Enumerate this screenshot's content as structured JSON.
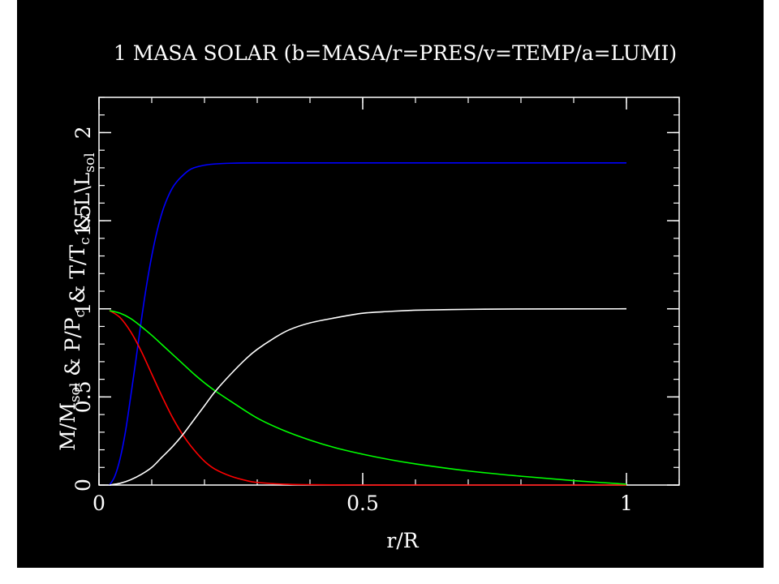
{
  "chart_data": {
    "type": "line",
    "title": "1 MASA SOLAR (b=MASA/r=PRES/v=TEMP/a=LUMI)",
    "xlabel": "r/R",
    "ylabel": {
      "parts": [
        {
          "text": "M/M",
          "sub": false
        },
        {
          "text": "sol",
          "sub": true
        },
        {
          "text": " & P/P",
          "sub": false
        },
        {
          "text": "c",
          "sub": true
        },
        {
          "text": " & T/T",
          "sub": false
        },
        {
          "text": "c",
          "sub": true
        },
        {
          "text": " & L\\L",
          "sub": false
        },
        {
          "text": "sol",
          "sub": true
        }
      ]
    },
    "xlim": [
      0,
      1.1
    ],
    "ylim": [
      0,
      2.2
    ],
    "x_ticks": [
      {
        "value": 0,
        "label": "0"
      },
      {
        "value": 0.5,
        "label": "0.5"
      },
      {
        "value": 1,
        "label": "1"
      }
    ],
    "y_ticks": [
      {
        "value": 0,
        "label": "0"
      },
      {
        "value": 0.5,
        "label": "0.5"
      },
      {
        "value": 1,
        "label": "1"
      },
      {
        "value": 1.5,
        "label": "1.5"
      },
      {
        "value": 2,
        "label": "2"
      }
    ],
    "x_minor_step": 0.1,
    "y_minor_step": 0.1,
    "grid": false,
    "colors": {
      "background": "#000000",
      "frame": "#ffffff",
      "text": "#ffffff"
    },
    "series": [
      {
        "color": "#0000ff",
        "x": [
          0.02,
          0.03,
          0.04,
          0.05,
          0.06,
          0.07,
          0.08,
          0.09,
          0.1,
          0.11,
          0.12,
          0.13,
          0.14,
          0.15,
          0.16,
          0.17,
          0.18,
          0.2,
          0.22,
          0.25,
          0.3,
          0.4,
          0.6,
          0.8,
          1.0
        ],
        "y": [
          0.0,
          0.05,
          0.15,
          0.3,
          0.5,
          0.71,
          0.93,
          1.13,
          1.3,
          1.44,
          1.55,
          1.63,
          1.69,
          1.73,
          1.76,
          1.785,
          1.8,
          1.815,
          1.822,
          1.826,
          1.828,
          1.828,
          1.828,
          1.828,
          1.828
        ]
      },
      {
        "color": "#ff0000",
        "x": [
          0.02,
          0.04,
          0.06,
          0.08,
          0.1,
          0.12,
          0.14,
          0.16,
          0.18,
          0.2,
          0.22,
          0.25,
          0.28,
          0.3,
          0.35,
          0.4,
          0.5,
          0.6,
          0.8,
          1.0
        ],
        "y": [
          0.99,
          0.95,
          0.87,
          0.76,
          0.63,
          0.5,
          0.38,
          0.28,
          0.2,
          0.135,
          0.09,
          0.05,
          0.025,
          0.015,
          0.005,
          0.002,
          0.0,
          0.0,
          0.0,
          0.0
        ]
      },
      {
        "color": "#00ff00",
        "x": [
          0.02,
          0.04,
          0.06,
          0.08,
          0.1,
          0.12,
          0.14,
          0.16,
          0.18,
          0.2,
          0.22,
          0.25,
          0.3,
          0.35,
          0.4,
          0.45,
          0.5,
          0.55,
          0.6,
          0.7,
          0.8,
          0.9,
          1.0
        ],
        "y": [
          0.99,
          0.975,
          0.945,
          0.9,
          0.85,
          0.795,
          0.74,
          0.685,
          0.63,
          0.58,
          0.535,
          0.475,
          0.38,
          0.31,
          0.255,
          0.21,
          0.175,
          0.145,
          0.12,
          0.08,
          0.05,
          0.025,
          0.005
        ]
      },
      {
        "color": "#ffffff",
        "x": [
          0.02,
          0.04,
          0.06,
          0.08,
          0.1,
          0.12,
          0.14,
          0.16,
          0.18,
          0.2,
          0.22,
          0.25,
          0.28,
          0.3,
          0.33,
          0.36,
          0.4,
          0.45,
          0.5,
          0.55,
          0.6,
          0.7,
          0.8,
          1.0
        ],
        "y": [
          0.0,
          0.01,
          0.03,
          0.06,
          0.1,
          0.16,
          0.22,
          0.29,
          0.37,
          0.45,
          0.53,
          0.63,
          0.72,
          0.77,
          0.83,
          0.88,
          0.92,
          0.95,
          0.975,
          0.985,
          0.992,
          0.997,
          0.999,
          1.0
        ]
      }
    ]
  }
}
